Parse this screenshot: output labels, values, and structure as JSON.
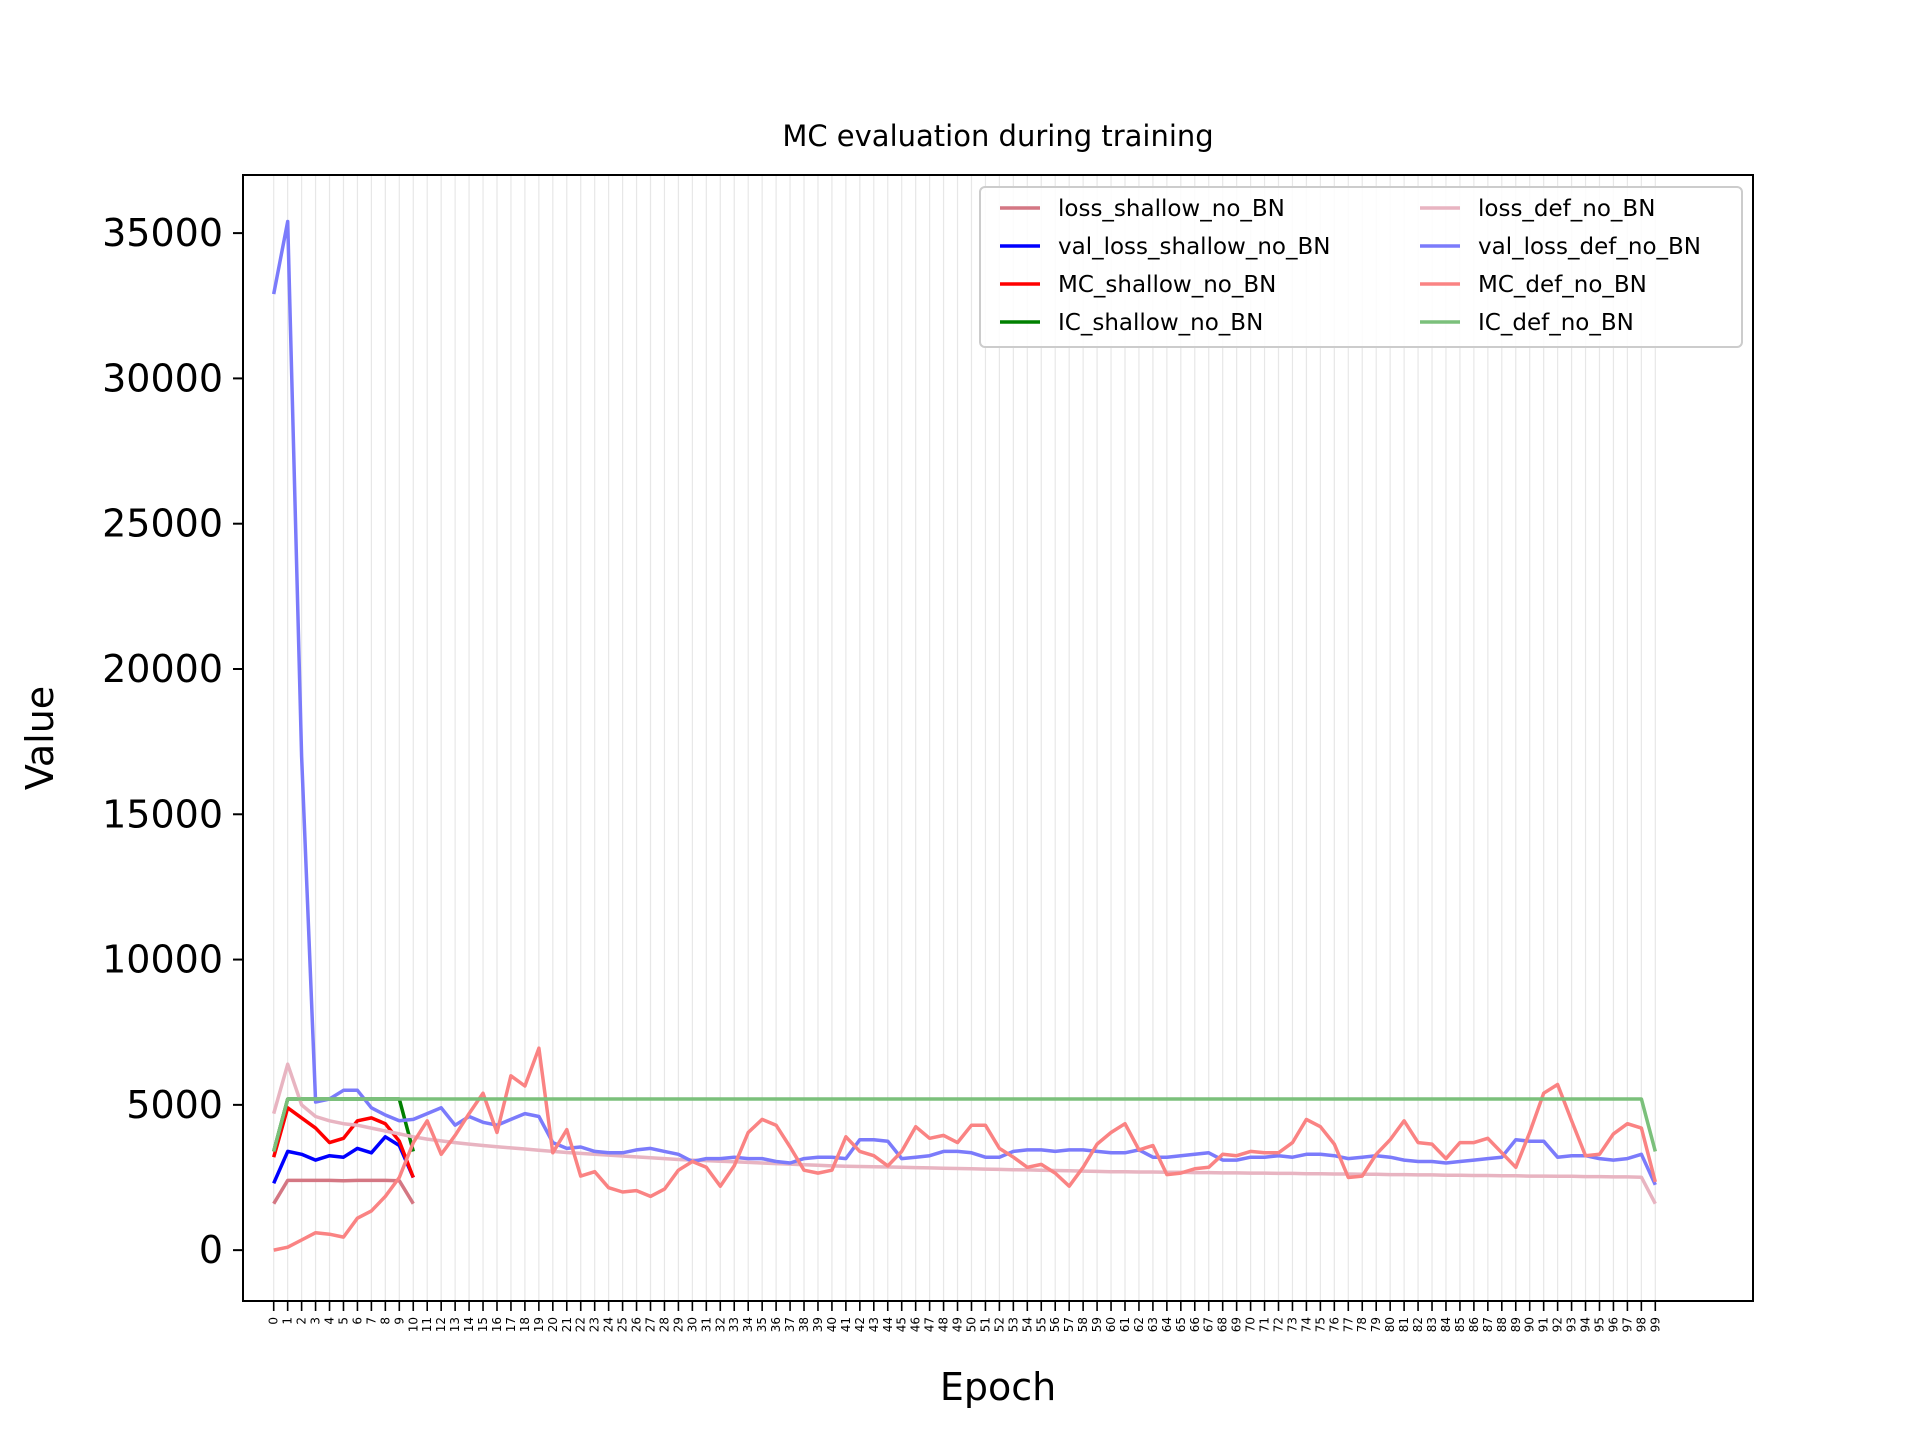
{
  "chart_data": {
    "type": "line",
    "title": "MC evaluation during training",
    "xlabel": "Epoch",
    "ylabel": "Value",
    "xlim": [
      -2.2,
      106.0
    ],
    "ylim": [
      -1750,
      37000
    ],
    "yticks": [
      0,
      5000,
      10000,
      15000,
      20000,
      25000,
      30000,
      35000
    ],
    "xticks": [
      0,
      1,
      2,
      3,
      4,
      5,
      6,
      7,
      8,
      9,
      10,
      11,
      12,
      13,
      14,
      15,
      16,
      17,
      18,
      19,
      20,
      21,
      22,
      23,
      24,
      25,
      26,
      27,
      28,
      29,
      30,
      31,
      32,
      33,
      34,
      35,
      36,
      37,
      38,
      39,
      40,
      41,
      42,
      43,
      44,
      45,
      46,
      47,
      48,
      49,
      50,
      51,
      52,
      53,
      54,
      55,
      56,
      57,
      58,
      59,
      60,
      61,
      62,
      63,
      64,
      65,
      66,
      67,
      68,
      69,
      70,
      71,
      72,
      73,
      74,
      75,
      76,
      77,
      78,
      79,
      80,
      81,
      82,
      83,
      84,
      85,
      86,
      87,
      88,
      89,
      90,
      91,
      92,
      93,
      94,
      95,
      96,
      97,
      98,
      99
    ],
    "grid": "vertical",
    "legend_position": "top-right",
    "series": [
      {
        "name": "loss_shallow_no_BN",
        "color": "#d47783",
        "width": 3.5,
        "opacity": 1,
        "values": [
          1600,
          2400,
          2400,
          2400,
          2400,
          2390,
          2400,
          2400,
          2400,
          2390,
          1600
        ]
      },
      {
        "name": "val_loss_shallow_no_BN",
        "color": "#0000ff",
        "width": 3.5,
        "opacity": 1,
        "values": [
          2300,
          3400,
          3300,
          3100,
          3250,
          3200,
          3500,
          3350,
          3900,
          3600,
          2500
        ]
      },
      {
        "name": "MC_shallow_no_BN",
        "color": "#ff0000",
        "width": 3.5,
        "opacity": 1,
        "values": [
          3200,
          4900,
          4550,
          4200,
          3700,
          3850,
          4450,
          4550,
          4350,
          3750,
          2500
        ]
      },
      {
        "name": "IC_shallow_no_BN",
        "color": "#008000",
        "width": 3.5,
        "opacity": 1,
        "values": [
          3400,
          5200,
          5200,
          5200,
          5200,
          5200,
          5200,
          5200,
          5200,
          5200,
          3400
        ]
      },
      {
        "name": "loss_def_no_BN",
        "color": "#e8b4c1",
        "width": 3.5,
        "opacity": 1,
        "values": [
          4700,
          6400,
          5000,
          4600,
          4450,
          4350,
          4300,
          4200,
          4100,
          4000,
          3900,
          3820,
          3760,
          3700,
          3650,
          3600,
          3560,
          3520,
          3480,
          3440,
          3400,
          3360,
          3330,
          3300,
          3270,
          3240,
          3210,
          3180,
          3150,
          3120,
          3100,
          3080,
          3060,
          3040,
          3020,
          3000,
          2980,
          2960,
          2940,
          2920,
          2900,
          2890,
          2880,
          2870,
          2860,
          2850,
          2840,
          2830,
          2820,
          2810,
          2800,
          2790,
          2780,
          2770,
          2760,
          2750,
          2740,
          2730,
          2720,
          2710,
          2700,
          2700,
          2690,
          2690,
          2680,
          2680,
          2670,
          2670,
          2660,
          2660,
          2650,
          2650,
          2640,
          2640,
          2630,
          2630,
          2620,
          2620,
          2610,
          2610,
          2600,
          2600,
          2590,
          2590,
          2580,
          2580,
          2570,
          2570,
          2560,
          2560,
          2550,
          2550,
          2540,
          2540,
          2530,
          2530,
          2520,
          2520,
          2510,
          1600
        ]
      },
      {
        "name": "val_loss_def_no_BN",
        "color": "#7b7bfb",
        "width": 3.5,
        "opacity": 1,
        "values": [
          32900,
          35400,
          17000,
          5100,
          5200,
          5500,
          5500,
          4900,
          4650,
          4450,
          4500,
          4700,
          4900,
          4300,
          4600,
          4400,
          4300,
          4500,
          4700,
          4600,
          3700,
          3500,
          3550,
          3400,
          3350,
          3350,
          3450,
          3500,
          3400,
          3300,
          3050,
          3150,
          3150,
          3200,
          3150,
          3150,
          3050,
          3000,
          3150,
          3200,
          3200,
          3150,
          3800,
          3800,
          3750,
          3150,
          3200,
          3250,
          3400,
          3400,
          3350,
          3200,
          3200,
          3400,
          3450,
          3450,
          3400,
          3450,
          3450,
          3400,
          3350,
          3350,
          3450,
          3200,
          3200,
          3250,
          3300,
          3350,
          3100,
          3100,
          3200,
          3200,
          3250,
          3200,
          3300,
          3300,
          3250,
          3150,
          3200,
          3250,
          3200,
          3100,
          3050,
          3050,
          3000,
          3050,
          3100,
          3150,
          3200,
          3800,
          3750,
          3750,
          3200,
          3250,
          3250,
          3150,
          3100,
          3150,
          3300,
          2250
        ]
      },
      {
        "name": "MC_def_no_BN",
        "color": "#fa8383",
        "width": 3.5,
        "opacity": 1,
        "values": [
          0,
          100,
          350,
          600,
          550,
          450,
          1100,
          1350,
          1850,
          2500,
          3700,
          4450,
          3300,
          3950,
          4700,
          5400,
          4050,
          6000,
          5650,
          6950,
          3350,
          4150,
          2550,
          2700,
          2150,
          2000,
          2050,
          1850,
          2100,
          2750,
          3050,
          2850,
          2200,
          2900,
          4050,
          4500,
          4300,
          3550,
          2750,
          2650,
          2750,
          3900,
          3400,
          3250,
          2900,
          3400,
          4250,
          3850,
          3950,
          3700,
          4300,
          4300,
          3500,
          3200,
          2850,
          2950,
          2650,
          2200,
          2850,
          3650,
          4050,
          4350,
          3450,
          3600,
          2600,
          2650,
          2800,
          2850,
          3300,
          3250,
          3400,
          3350,
          3350,
          3700,
          4500,
          4250,
          3650,
          2500,
          2550,
          3300,
          3800,
          4450,
          3700,
          3650,
          3150,
          3700,
          3700,
          3850,
          3350,
          2850,
          4050,
          5400,
          5700,
          4450,
          3250,
          3300,
          4000,
          4350,
          4200,
          2350
        ]
      },
      {
        "name": "IC_def_no_BN",
        "color": "#7bc07b",
        "width": 3.5,
        "opacity": 1,
        "values": [
          3400,
          5200,
          5200,
          5200,
          5200,
          5200,
          5200,
          5200,
          5200,
          5200,
          5200,
          5200,
          5200,
          5200,
          5200,
          5200,
          5200,
          5200,
          5200,
          5200,
          5200,
          5200,
          5200,
          5200,
          5200,
          5200,
          5200,
          5200,
          5200,
          5200,
          5200,
          5200,
          5200,
          5200,
          5200,
          5200,
          5200,
          5200,
          5200,
          5200,
          5200,
          5200,
          5200,
          5200,
          5200,
          5200,
          5200,
          5200,
          5200,
          5200,
          5200,
          5200,
          5200,
          5200,
          5200,
          5200,
          5200,
          5200,
          5200,
          5200,
          5200,
          5200,
          5200,
          5200,
          5200,
          5200,
          5200,
          5200,
          5200,
          5200,
          5200,
          5200,
          5200,
          5200,
          5200,
          5200,
          5200,
          5200,
          5200,
          5200,
          5200,
          5200,
          5200,
          5200,
          5200,
          5200,
          5200,
          5200,
          5200,
          5200,
          5200,
          5200,
          5200,
          5200,
          5200,
          5200,
          5200,
          5200,
          5200,
          3400
        ]
      }
    ]
  }
}
